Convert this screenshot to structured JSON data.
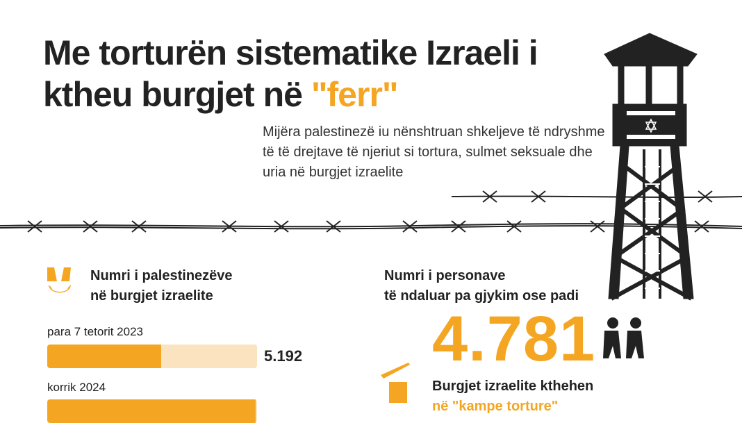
{
  "header": {
    "title_line1": "Me torturën sistematike Izraeli i",
    "title_line2_prefix": "ktheu burgjet në",
    "title_highlight": "\"ferr\"",
    "subtitle": "Mijëra palestinezë iu nënshtruan shkeljeve të ndryshme të të drejtave të njeriut si tortura, sulmet seksuale dhe uria në burgjet izraelite"
  },
  "left_section": {
    "heading_line1": "Numri i palestinezëve",
    "heading_line2": "në burgjet izraelite",
    "bars": [
      {
        "label": "para 7 tetorit 2023",
        "value": "5.192"
      },
      {
        "label": "korrik 2024"
      }
    ]
  },
  "right_section": {
    "heading_line1": "Numri i personave",
    "heading_line2": "të ndaluar pa gjykim ose padi",
    "value": "4.781",
    "note_line1": "Burgjet izraelite kthehen",
    "note_line2": "në \"kampe torture\""
  }
}
